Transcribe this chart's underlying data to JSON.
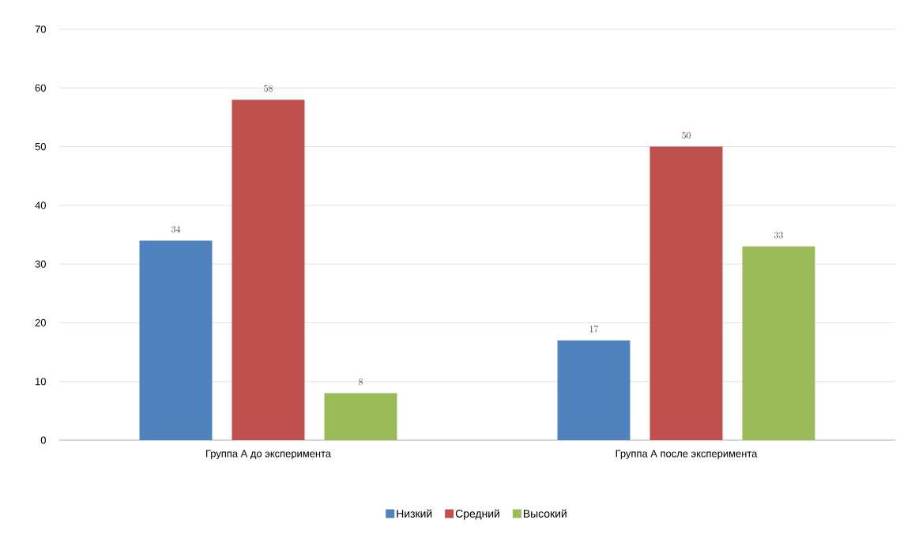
{
  "chart_data": {
    "type": "bar",
    "categories": [
      "Группа А до эксперимента",
      "Группа А после эксперимента"
    ],
    "series": [
      {
        "name": "Низкий",
        "color": "#4f81bd",
        "values": [
          34,
          17
        ]
      },
      {
        "name": "Средний",
        "color": "#c0504d",
        "values": [
          58,
          50
        ]
      },
      {
        "name": "Высокий",
        "color": "#9bbb59",
        "values": [
          8,
          33
        ]
      }
    ],
    "ylim": [
      0,
      70
    ],
    "yticks": [
      0,
      10,
      20,
      30,
      40,
      50,
      60,
      70
    ],
    "grid": "y",
    "legend": "bottom",
    "data_labels": true
  }
}
